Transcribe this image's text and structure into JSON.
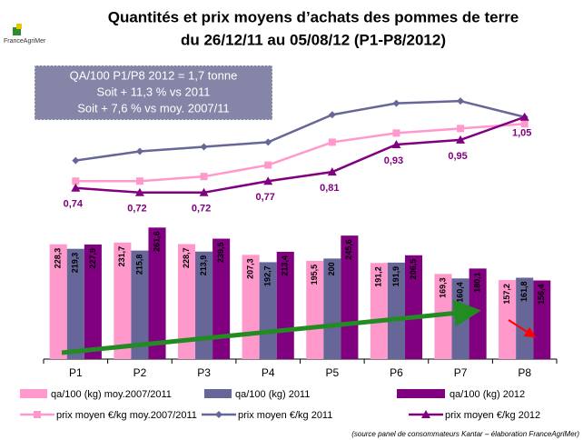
{
  "logo": "FranceAgriMer",
  "chart_data": {
    "type": "bar",
    "title": [
      "Quantités et prix moyens d’achats des pommes de terre",
      "du 26/12/11 au 05/08/12 (P1-P8/2012)"
    ],
    "annotation": [
      "QA/100 P1/P8 2012 = 1,7 tonne",
      "Soit + 11,3 % vs 2011",
      "Soit + 7,6 % vs moy. 2007/11"
    ],
    "source": "(source panel de consommateurs Kantar – élaboration FranceAgriMer)",
    "categories": [
      "P1",
      "P2",
      "P3",
      "P4",
      "P5",
      "P6",
      "P7",
      "P8"
    ],
    "ylim": [
      0,
      320
    ],
    "y2lim": [
      0.6,
      1.2
    ],
    "series": [
      {
        "name": "qa/100 (kg) moy.2007/2011",
        "color": "#ff99cc",
        "values": [
          228.3,
          231.7,
          228.7,
          207.3,
          195.5,
          191.2,
          169.3,
          157.2
        ],
        "value_labels": [
          "228,3",
          "231,7",
          "228,7",
          "207,3",
          "195,5",
          "191,2",
          "169,3",
          "157,2"
        ]
      },
      {
        "name": "qa/100 (kg) 2011",
        "color": "#666699",
        "values": [
          219.3,
          215.8,
          213.9,
          192.7,
          200,
          191.9,
          160.4,
          161.8
        ],
        "value_labels": [
          "219,3",
          "215,8",
          "213,9",
          "192,7",
          "200",
          "191,9",
          "160,4",
          "161,8"
        ]
      },
      {
        "name": "qa/100 (kg) 2012",
        "color": "#800080",
        "values": [
          227.9,
          261.6,
          239.5,
          213.4,
          245.6,
          206.5,
          180.1,
          156.4
        ],
        "value_labels": [
          "227,9",
          "261,6",
          "239,5",
          "213,4",
          "245,6",
          "206,5",
          "180,1",
          "156,4"
        ]
      },
      {
        "name": "prix moyen €/kg moy.2007/2011",
        "type": "line",
        "axis": "y2",
        "marker": "square",
        "color": "#ff99cc",
        "values": [
          0.77,
          0.77,
          0.79,
          0.84,
          0.94,
          0.98,
          1.0,
          1.02
        ]
      },
      {
        "name": "prix moyen €/kg 2011",
        "type": "line",
        "axis": "y2",
        "marker": "diamond",
        "color": "#666699",
        "values": [
          0.86,
          0.9,
          0.92,
          0.94,
          1.06,
          1.11,
          1.12,
          1.05
        ]
      },
      {
        "name": "prix moyen €/kg 2012",
        "type": "line",
        "axis": "y2",
        "marker": "triangle",
        "color": "#800080",
        "values": [
          0.74,
          0.72,
          0.72,
          0.77,
          0.81,
          0.93,
          0.95,
          1.05
        ],
        "value_labels": [
          "0,74",
          "0,72",
          "0,72",
          "0,77",
          "0,81",
          "0,93",
          "0,95",
          "1,05"
        ]
      }
    ]
  }
}
